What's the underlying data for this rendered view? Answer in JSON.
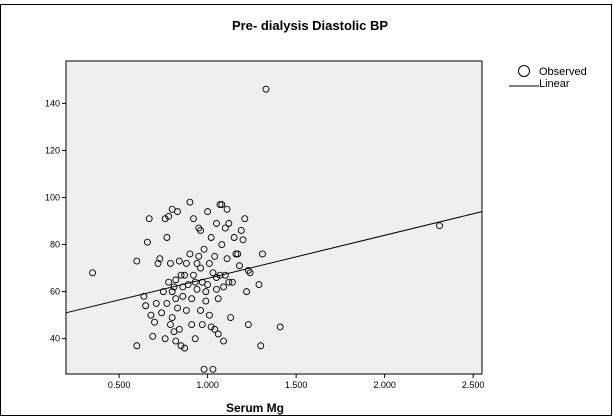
{
  "chart_data": {
    "type": "scatter",
    "title": "Pre- dialysis Diastolic BP",
    "xlabel": "Serum Mg",
    "ylabel": "",
    "xlim": [
      0.2,
      2.55
    ],
    "ylim": [
      25,
      158
    ],
    "x_ticks": [
      {
        "value": 0.5,
        "label": "0.500"
      },
      {
        "value": 1.0,
        "label": "1.000"
      },
      {
        "value": 1.5,
        "label": "1.500"
      },
      {
        "value": 2.0,
        "label": "2.000"
      },
      {
        "value": 2.5,
        "label": "2.500"
      }
    ],
    "y_ticks": [
      {
        "value": 40,
        "label": "40"
      },
      {
        "value": 60,
        "label": "60"
      },
      {
        "value": 80,
        "label": "80"
      },
      {
        "value": 100,
        "label": "100"
      },
      {
        "value": 120,
        "label": "120"
      },
      {
        "value": 140,
        "label": "140"
      }
    ],
    "grid": false,
    "legend": {
      "position": "right",
      "entries": [
        {
          "label": "Observed",
          "marker": "open-circle"
        },
        {
          "label": "Linear",
          "marker": "line"
        }
      ]
    },
    "colors": {
      "plot_background": "#efefef",
      "marker": "#000000",
      "line": "#000000"
    },
    "fit_line": {
      "name": "Linear",
      "x": [
        0.2,
        2.55
      ],
      "y": [
        51,
        94
      ]
    },
    "series": [
      {
        "name": "Observed",
        "points": [
          [
            0.35,
            68
          ],
          [
            1.33,
            146
          ],
          [
            2.31,
            88
          ],
          [
            0.6,
            73
          ],
          [
            0.6,
            37
          ],
          [
            0.64,
            58
          ],
          [
            0.65,
            54
          ],
          [
            0.66,
            81
          ],
          [
            0.67,
            91
          ],
          [
            0.68,
            50
          ],
          [
            0.69,
            41
          ],
          [
            0.7,
            47
          ],
          [
            0.71,
            55
          ],
          [
            0.72,
            72
          ],
          [
            0.73,
            74
          ],
          [
            0.74,
            51
          ],
          [
            0.75,
            60
          ],
          [
            0.76,
            91
          ],
          [
            0.76,
            40
          ],
          [
            0.77,
            83
          ],
          [
            0.77,
            55
          ],
          [
            0.78,
            92
          ],
          [
            0.78,
            64
          ],
          [
            0.79,
            72
          ],
          [
            0.79,
            46
          ],
          [
            0.8,
            95
          ],
          [
            0.8,
            60
          ],
          [
            0.8,
            49
          ],
          [
            0.81,
            62
          ],
          [
            0.81,
            43
          ],
          [
            0.82,
            65
          ],
          [
            0.82,
            57
          ],
          [
            0.82,
            39
          ],
          [
            0.83,
            94
          ],
          [
            0.83,
            53
          ],
          [
            0.84,
            73
          ],
          [
            0.84,
            44
          ],
          [
            0.85,
            67
          ],
          [
            0.85,
            37
          ],
          [
            0.86,
            62
          ],
          [
            0.86,
            58
          ],
          [
            0.87,
            67
          ],
          [
            0.87,
            36
          ],
          [
            0.88,
            72
          ],
          [
            0.88,
            52
          ],
          [
            0.89,
            63
          ],
          [
            0.9,
            98
          ],
          [
            0.9,
            76
          ],
          [
            0.91,
            57
          ],
          [
            0.91,
            46
          ],
          [
            0.92,
            91
          ],
          [
            0.92,
            67
          ],
          [
            0.93,
            64
          ],
          [
            0.93,
            40
          ],
          [
            0.94,
            72
          ],
          [
            0.94,
            61
          ],
          [
            0.95,
            87
          ],
          [
            0.95,
            75
          ],
          [
            0.96,
            86
          ],
          [
            0.96,
            70
          ],
          [
            0.96,
            52
          ],
          [
            0.97,
            64
          ],
          [
            0.97,
            46
          ],
          [
            0.98,
            27
          ],
          [
            0.98,
            78
          ],
          [
            0.99,
            60
          ],
          [
            0.99,
            56
          ],
          [
            1.0,
            94
          ],
          [
            1.0,
            63
          ],
          [
            1.01,
            72
          ],
          [
            1.01,
            50
          ],
          [
            1.02,
            83
          ],
          [
            1.02,
            45
          ],
          [
            1.03,
            27
          ],
          [
            1.03,
            68
          ],
          [
            1.04,
            75
          ],
          [
            1.04,
            44
          ],
          [
            1.05,
            89
          ],
          [
            1.05,
            66
          ],
          [
            1.06,
            57
          ],
          [
            1.06,
            42
          ],
          [
            1.07,
            97
          ],
          [
            1.07,
            67
          ],
          [
            1.08,
            97
          ],
          [
            1.08,
            80
          ],
          [
            1.09,
            62
          ],
          [
            1.09,
            39
          ],
          [
            1.1,
            87
          ],
          [
            1.1,
            67
          ],
          [
            1.11,
            95
          ],
          [
            1.11,
            74
          ],
          [
            1.12,
            89
          ],
          [
            1.12,
            64
          ],
          [
            1.13,
            49
          ],
          [
            1.14,
            64
          ],
          [
            1.15,
            83
          ],
          [
            1.16,
            76
          ],
          [
            1.17,
            76
          ],
          [
            1.18,
            71
          ],
          [
            1.19,
            86
          ],
          [
            1.2,
            82
          ],
          [
            1.21,
            91
          ],
          [
            1.22,
            60
          ],
          [
            1.23,
            69
          ],
          [
            1.23,
            46
          ],
          [
            1.24,
            68
          ],
          [
            1.29,
            63
          ],
          [
            1.3,
            37
          ],
          [
            1.31,
            76
          ],
          [
            1.41,
            45
          ],
          [
            1.05,
            61
          ]
        ]
      }
    ]
  }
}
